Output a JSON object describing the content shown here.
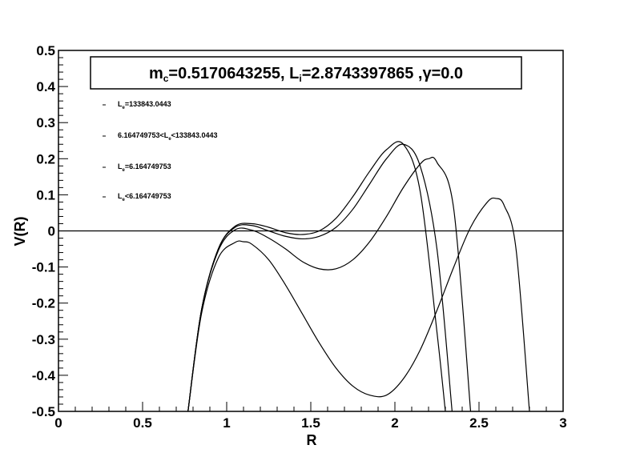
{
  "chart_data": {
    "type": "line",
    "title": {
      "m_c": "0.5170643255",
      "L_i": "2.8743397865",
      "gamma": "0.0"
    },
    "xlabel": "R",
    "ylabel": "V(R)",
    "xlim": [
      0,
      3
    ],
    "ylim": [
      -0.5,
      0.5
    ],
    "xticks": [
      "0",
      "0.5",
      "1",
      "1.5",
      "2",
      "2.5",
      "3"
    ],
    "yticks": [
      "-0.5",
      "-0.4",
      "-0.3",
      "-0.2",
      "-0.1",
      "0",
      "0.1",
      "0.2",
      "0.3",
      "0.4",
      "0.5"
    ],
    "grid": false,
    "legend_position": "top-left",
    "reference_line_y": 0,
    "series": [
      {
        "name": "L_e=133843.0443",
        "legend": {
          "L": "L",
          "sub": "e",
          "rest": "=133843.0443"
        },
        "x": [
          0.77,
          0.85,
          0.95,
          1.05,
          1.15,
          1.25,
          1.35,
          1.45,
          1.55,
          1.65,
          1.75,
          1.85,
          1.95,
          2.05,
          2.15,
          2.25,
          2.3
        ],
        "y": [
          -0.5,
          -0.22,
          -0.05,
          0.013,
          0.02,
          0.01,
          -0.005,
          -0.01,
          0.0,
          0.035,
          0.095,
          0.165,
          0.225,
          0.24,
          0.11,
          -0.28,
          -0.5
        ]
      },
      {
        "name": "6.164749753<L_e<133843.0443",
        "legend": {
          "L": "6.164749753<L",
          "sub": "e",
          "rest": "<133843.0443"
        },
        "x": [
          0.77,
          0.85,
          0.95,
          1.05,
          1.15,
          1.25,
          1.35,
          1.45,
          1.55,
          1.65,
          1.75,
          1.85,
          1.95,
          2.05,
          2.15,
          2.25,
          2.34
        ],
        "y": [
          -0.5,
          -0.22,
          -0.05,
          0.01,
          0.015,
          0.0,
          -0.015,
          -0.022,
          -0.015,
          0.01,
          0.06,
          0.13,
          0.2,
          0.24,
          0.18,
          -0.05,
          -0.5
        ]
      },
      {
        "name": "L_e=6.164749753",
        "legend": {
          "L": "L",
          "sub": "e",
          "rest": "=6.164749753"
        },
        "x": [
          0.77,
          0.85,
          0.95,
          1.05,
          1.15,
          1.25,
          1.35,
          1.45,
          1.55,
          1.65,
          1.75,
          1.85,
          1.95,
          2.05,
          2.15,
          2.2,
          2.25,
          2.35,
          2.45
        ],
        "y": [
          -0.5,
          -0.22,
          -0.055,
          0.003,
          0.002,
          -0.02,
          -0.05,
          -0.085,
          -0.105,
          -0.105,
          -0.08,
          -0.03,
          0.04,
          0.12,
          0.185,
          0.2,
          0.19,
          0.06,
          -0.5
        ]
      },
      {
        "name": "L_e<6.164749753",
        "legend": {
          "L": "L",
          "sub": "e",
          "rest": "<6.164749753"
        },
        "x": [
          0.77,
          0.85,
          0.95,
          1.05,
          1.1,
          1.15,
          1.25,
          1.35,
          1.45,
          1.55,
          1.65,
          1.75,
          1.85,
          1.95,
          2.05,
          2.15,
          2.25,
          2.35,
          2.45,
          2.55,
          2.6,
          2.65,
          2.72,
          2.8
        ],
        "y": [
          -0.5,
          -0.23,
          -0.075,
          -0.032,
          -0.03,
          -0.037,
          -0.08,
          -0.15,
          -0.23,
          -0.31,
          -0.38,
          -0.43,
          -0.455,
          -0.455,
          -0.41,
          -0.33,
          -0.22,
          -0.1,
          0.01,
          0.08,
          0.09,
          0.07,
          -0.05,
          -0.5
        ]
      }
    ]
  }
}
